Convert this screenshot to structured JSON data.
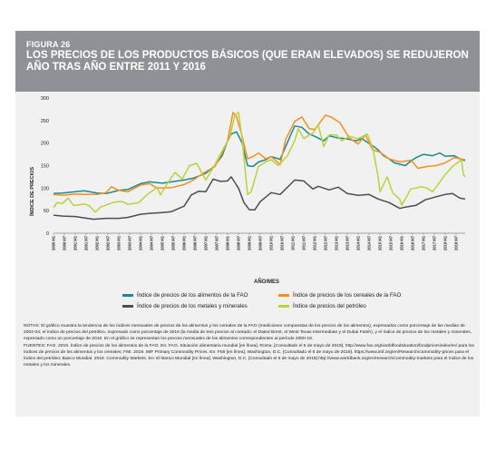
{
  "figure": {
    "number": "FIGURA 26",
    "title": "LOS PRECIOS DE LOS PRODUCTOS BÁSICOS (QUE ERAN ELEVADOS) SE REDUJERON AÑO TRAS AÑO ENTRE 2011 Y 2016"
  },
  "colors": {
    "header_bg": "#8f9196",
    "panel_bg": "#f1f1f1",
    "food": "#1a8a8f",
    "cereals": "#f3901e",
    "metals": "#4d4d57",
    "oil": "#b8d23a"
  },
  "chart_data": {
    "type": "line",
    "title": "",
    "xlabel": "AÑO/MES",
    "ylabel": "ÍNDICE DE PRECIOS",
    "ylim": [
      0,
      300
    ],
    "yticks": [
      0,
      50,
      100,
      150,
      200,
      250,
      300
    ],
    "xlim": [
      "2000-01",
      "2018-12"
    ],
    "x_tick_labels": [
      "2000 M1",
      "2000 M7",
      "2001 M1",
      "2001 M7",
      "2002 M1",
      "2002 M7",
      "2003 M1",
      "2003 M7",
      "2004 M1",
      "2004 M7",
      "2005 M1",
      "2005 M7",
      "2006 M1",
      "2006 M7",
      "2007 M1",
      "2007 M7",
      "2008 M1",
      "2008 M7",
      "2009 M1",
      "2009 M7",
      "2010 M1",
      "2010 M7",
      "2011 M1",
      "2011 M7",
      "2012 M1",
      "2012 M7",
      "2013 M1",
      "2013 M7",
      "2014 M1",
      "2014 M7",
      "2015 M1",
      "2015 M7",
      "2016 M1",
      "2016 M7",
      "2017 M1",
      "2017 M7",
      "2018 M1",
      "2018 M7"
    ],
    "grid": false,
    "legend_position": "bottom",
    "series": [
      {
        "name": "Índice de precios de los alimentos de la FAO",
        "color": "#1a8a8f",
        "points": [
          [
            "2000-01",
            88
          ],
          [
            "2000-06",
            89
          ],
          [
            "2001-01",
            92
          ],
          [
            "2001-06",
            94
          ],
          [
            "2002-01",
            89
          ],
          [
            "2002-06",
            88
          ],
          [
            "2003-01",
            95
          ],
          [
            "2003-06",
            97
          ],
          [
            "2004-01",
            110
          ],
          [
            "2004-06",
            114
          ],
          [
            "2005-01",
            111
          ],
          [
            "2005-06",
            114
          ],
          [
            "2006-01",
            118
          ],
          [
            "2006-06",
            122
          ],
          [
            "2007-01",
            133
          ],
          [
            "2007-06",
            150
          ],
          [
            "2007-10",
            172
          ],
          [
            "2008-01",
            205
          ],
          [
            "2008-03",
            220
          ],
          [
            "2008-06",
            225
          ],
          [
            "2008-09",
            200
          ],
          [
            "2008-12",
            150
          ],
          [
            "2009-03",
            148
          ],
          [
            "2009-06",
            158
          ],
          [
            "2009-10",
            163
          ],
          [
            "2010-01",
            170
          ],
          [
            "2010-06",
            164
          ],
          [
            "2010-09",
            192
          ],
          [
            "2010-12",
            220
          ],
          [
            "2011-02",
            238
          ],
          [
            "2011-06",
            235
          ],
          [
            "2011-10",
            220
          ],
          [
            "2012-01",
            215
          ],
          [
            "2012-06",
            205
          ],
          [
            "2012-09",
            216
          ],
          [
            "2013-01",
            212
          ],
          [
            "2013-06",
            210
          ],
          [
            "2013-12",
            205
          ],
          [
            "2014-03",
            210
          ],
          [
            "2014-08",
            197
          ],
          [
            "2014-12",
            185
          ],
          [
            "2015-03",
            172
          ],
          [
            "2015-06",
            165
          ],
          [
            "2015-09",
            156
          ],
          [
            "2015-12",
            153
          ],
          [
            "2016-03",
            150
          ],
          [
            "2016-06",
            160
          ],
          [
            "2016-09",
            168
          ],
          [
            "2017-01",
            175
          ],
          [
            "2017-06",
            172
          ],
          [
            "2017-10",
            178
          ],
          [
            "2018-01",
            171
          ],
          [
            "2018-06",
            172
          ],
          [
            "2018-09",
            165
          ],
          [
            "2018-12",
            161
          ]
        ]
      },
      {
        "name": "Índice de precios de los cereales de la FAO",
        "color": "#f3901e",
        "points": [
          [
            "2000-01",
            86
          ],
          [
            "2000-06",
            84
          ],
          [
            "2001-01",
            87
          ],
          [
            "2001-06",
            86
          ],
          [
            "2002-01",
            86
          ],
          [
            "2002-06",
            90
          ],
          [
            "2002-09",
            103
          ],
          [
            "2003-01",
            95
          ],
          [
            "2003-06",
            92
          ],
          [
            "2004-01",
            107
          ],
          [
            "2004-06",
            110
          ],
          [
            "2004-10",
            100
          ],
          [
            "2005-06",
            101
          ],
          [
            "2006-01",
            108
          ],
          [
            "2006-06",
            118
          ],
          [
            "2006-12",
            134
          ],
          [
            "2007-06",
            148
          ],
          [
            "2007-10",
            178
          ],
          [
            "2008-01",
            205
          ],
          [
            "2008-04",
            268
          ],
          [
            "2008-06",
            258
          ],
          [
            "2008-09",
            215
          ],
          [
            "2008-12",
            165
          ],
          [
            "2009-03",
            170
          ],
          [
            "2009-06",
            178
          ],
          [
            "2009-10",
            165
          ],
          [
            "2010-01",
            170
          ],
          [
            "2010-06",
            152
          ],
          [
            "2010-09",
            208
          ],
          [
            "2011-02",
            248
          ],
          [
            "2011-06",
            258
          ],
          [
            "2011-10",
            232
          ],
          [
            "2012-01",
            230
          ],
          [
            "2012-07",
            262
          ],
          [
            "2012-10",
            258
          ],
          [
            "2013-03",
            245
          ],
          [
            "2013-08",
            212
          ],
          [
            "2014-01",
            198
          ],
          [
            "2014-05",
            218
          ],
          [
            "2014-09",
            185
          ],
          [
            "2015-01",
            180
          ],
          [
            "2015-06",
            165
          ],
          [
            "2015-12",
            158
          ],
          [
            "2016-06",
            162
          ],
          [
            "2016-10",
            144
          ],
          [
            "2017-03",
            148
          ],
          [
            "2017-08",
            150
          ],
          [
            "2018-01",
            156
          ],
          [
            "2018-06",
            168
          ],
          [
            "2018-12",
            163
          ]
        ]
      },
      {
        "name": "Índice de precios de los metales y minerales",
        "color": "#4d4d57",
        "points": [
          [
            "2000-01",
            40
          ],
          [
            "2000-06",
            38
          ],
          [
            "2001-01",
            37
          ],
          [
            "2001-06",
            34
          ],
          [
            "2001-11",
            31
          ],
          [
            "2002-06",
            33
          ],
          [
            "2003-01",
            33
          ],
          [
            "2003-06",
            35
          ],
          [
            "2004-01",
            42
          ],
          [
            "2004-06",
            44
          ],
          [
            "2005-01",
            46
          ],
          [
            "2005-06",
            48
          ],
          [
            "2006-01",
            60
          ],
          [
            "2006-05",
            85
          ],
          [
            "2006-09",
            93
          ],
          [
            "2007-01",
            92
          ],
          [
            "2007-05",
            120
          ],
          [
            "2007-09",
            115
          ],
          [
            "2008-01",
            116
          ],
          [
            "2008-03",
            125
          ],
          [
            "2008-07",
            100
          ],
          [
            "2008-10",
            68
          ],
          [
            "2009-01",
            52
          ],
          [
            "2009-04",
            52
          ],
          [
            "2009-07",
            70
          ],
          [
            "2010-01",
            90
          ],
          [
            "2010-06",
            86
          ],
          [
            "2010-12",
            110
          ],
          [
            "2011-02",
            118
          ],
          [
            "2011-07",
            116
          ],
          [
            "2011-12",
            98
          ],
          [
            "2012-03",
            104
          ],
          [
            "2012-09",
            96
          ],
          [
            "2013-02",
            102
          ],
          [
            "2013-07",
            88
          ],
          [
            "2014-01",
            84
          ],
          [
            "2014-07",
            86
          ],
          [
            "2014-12",
            76
          ],
          [
            "2015-06",
            68
          ],
          [
            "2015-12",
            55
          ],
          [
            "2016-03",
            58
          ],
          [
            "2016-09",
            62
          ],
          [
            "2017-02",
            74
          ],
          [
            "2017-09",
            82
          ],
          [
            "2018-01",
            86
          ],
          [
            "2018-05",
            88
          ],
          [
            "2018-09",
            78
          ],
          [
            "2018-12",
            76
          ]
        ]
      },
      {
        "name": "Índice de precios del petróleo",
        "color": "#b8d23a",
        "points": [
          [
            "2000-01",
            57
          ],
          [
            "2000-03",
            68
          ],
          [
            "2000-06",
            66
          ],
          [
            "2000-09",
            78
          ],
          [
            "2000-12",
            62
          ],
          [
            "2001-03",
            63
          ],
          [
            "2001-06",
            65
          ],
          [
            "2001-09",
            60
          ],
          [
            "2001-12",
            47
          ],
          [
            "2002-03",
            58
          ],
          [
            "2002-09",
            67
          ],
          [
            "2002-12",
            70
          ],
          [
            "2003-03",
            70
          ],
          [
            "2003-06",
            64
          ],
          [
            "2003-12",
            68
          ],
          [
            "2004-05",
            87
          ],
          [
            "2004-08",
            95
          ],
          [
            "2004-10",
            102
          ],
          [
            "2004-12",
            85
          ],
          [
            "2005-04",
            112
          ],
          [
            "2005-08",
            135
          ],
          [
            "2005-12",
            120
          ],
          [
            "2006-04",
            150
          ],
          [
            "2006-08",
            155
          ],
          [
            "2006-12",
            125
          ],
          [
            "2007-01",
            118
          ],
          [
            "2007-06",
            152
          ],
          [
            "2007-11",
            190
          ],
          [
            "2008-02",
            210
          ],
          [
            "2008-05",
            262
          ],
          [
            "2008-07",
            268
          ],
          [
            "2008-09",
            210
          ],
          [
            "2008-12",
            86
          ],
          [
            "2009-02",
            92
          ],
          [
            "2009-06",
            148
          ],
          [
            "2009-10",
            158
          ],
          [
            "2010-01",
            163
          ],
          [
            "2010-05",
            150
          ],
          [
            "2010-10",
            172
          ],
          [
            "2011-02",
            205
          ],
          [
            "2011-04",
            232
          ],
          [
            "2011-07",
            210
          ],
          [
            "2011-12",
            222
          ],
          [
            "2012-03",
            240
          ],
          [
            "2012-06",
            192
          ],
          [
            "2012-09",
            218
          ],
          [
            "2013-01",
            218
          ],
          [
            "2013-04",
            205
          ],
          [
            "2013-08",
            215
          ],
          [
            "2014-01",
            210
          ],
          [
            "2014-06",
            220
          ],
          [
            "2014-09",
            190
          ],
          [
            "2014-12",
            125
          ],
          [
            "2015-01",
            92
          ],
          [
            "2015-05",
            125
          ],
          [
            "2015-08",
            90
          ],
          [
            "2015-12",
            75
          ],
          [
            "2016-01",
            62
          ],
          [
            "2016-06",
            98
          ],
          [
            "2016-12",
            103
          ],
          [
            "2017-03",
            100
          ],
          [
            "2017-06",
            92
          ],
          [
            "2017-09",
            108
          ],
          [
            "2018-01",
            130
          ],
          [
            "2018-05",
            148
          ],
          [
            "2018-10",
            163
          ],
          [
            "2018-11",
            130
          ],
          [
            "2018-12",
            125
          ]
        ]
      }
    ]
  },
  "legend": {
    "items": [
      {
        "label": "Índice de precios de los alimentos de la FAO",
        "color": "#1a8a8f"
      },
      {
        "label": "Índice de precios de los cereales de la FAO",
        "color": "#f3901e"
      },
      {
        "label": "Índice de precios de los metales y minerales",
        "color": "#4d4d57"
      },
      {
        "label": "Índice de precios del petróleo",
        "color": "#b8d23a"
      }
    ]
  },
  "notes": {
    "notas": "NOTAS: El gráfico muestra la tendencia de los índices mensuales de precios de los alimentos y los cereales de la FAO (mediciones compuestas de los precios de los alimentos), expresados como porcentaje de las medias de 2002-04; el índice de precios del petróleo, expresado como porcentaje de 2016 (la media de tres precios al contado: el Dated Brent, el West Texas Intermediate y el Dubai Fateh), y el índice de precios de los metales y minerales, expresado como un porcentaje de 2010. En el gráfico se representan los precios mensuales de los alimentos correspondientes al período 2000-18.",
    "fuentes": "FUENTES: FAO. 2019. Índice de precios de los alimentos de la FAO. En: FAO, Situación alimentaria mundial [en línea]. Roma. [Consultado el 5 de mayo de 2019]. http://www.fao.org/worldfoodsituation/foodpricesindex/es/ para los índices de precios de los alimentos y los cereales; FMI. 2019. IMF Primary Commodity Prices. En: FMI [en línea]. Washington, D.C. [Consultado el 6 de mayo de 2019]. https://www.imf.org/en/Research/commodity-prices para el índice del petróleo; Banco Mundial. 2019. Commodity Markets. En: El Banco Mundial [en línea]. Washington, D.C. [Consultado el 6 de mayo de 2019] http://www.worldbank.org/en/research/commodity-markets para el índice de los metales y los minerales."
  }
}
